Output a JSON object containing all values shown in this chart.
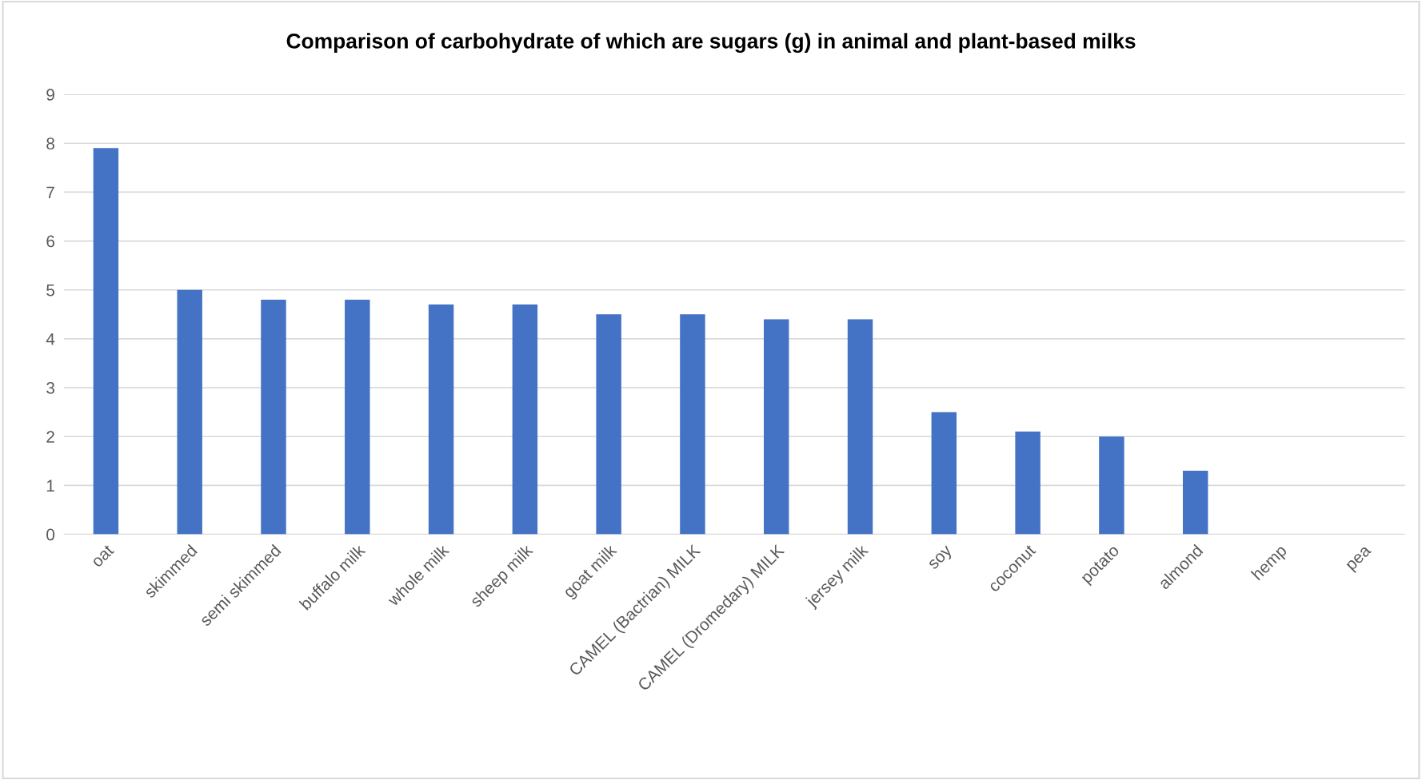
{
  "chart_data": {
    "type": "bar",
    "title": "Comparison of carbohydrate of which are sugars (g) in animal and plant-based milks",
    "categories": [
      "oat",
      "skimmed",
      "semi skimmed",
      "buffalo milk",
      "whole milk",
      "sheep milk",
      "goat milk",
      "CAMEL (Bactrian) MILK",
      "CAMEL (Dromedary) MILK",
      "jersey milk",
      "soy",
      "coconut",
      "potato",
      "almond",
      "hemp",
      "pea"
    ],
    "values": [
      7.9,
      5.0,
      4.8,
      4.8,
      4.7,
      4.7,
      4.5,
      4.5,
      4.4,
      4.4,
      2.5,
      2.1,
      2.0,
      1.3,
      0,
      0
    ],
    "color": "#4472c4",
    "ylim": [
      0,
      9
    ],
    "yticks": [
      0,
      1,
      2,
      3,
      4,
      5,
      6,
      7,
      8,
      9
    ],
    "grid": "y"
  }
}
